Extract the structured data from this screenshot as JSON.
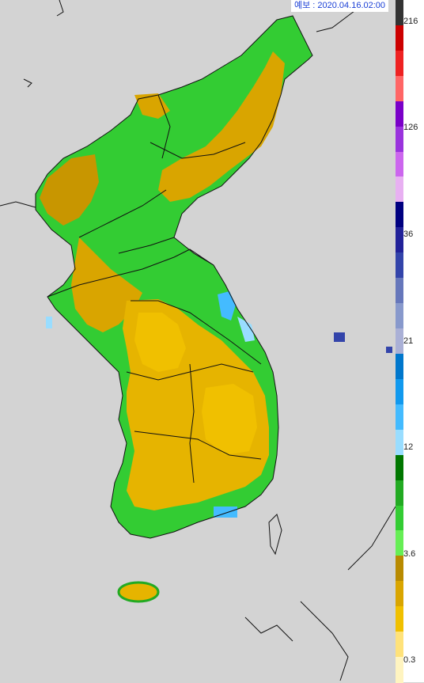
{
  "forecast_label": "예보 : 2020.04.16.02:00",
  "legend": {
    "ticks": [
      "216",
      "126",
      "36",
      "21",
      "12",
      "3.6",
      "0.3"
    ],
    "colors": [
      "#333333",
      "#cc0000",
      "#ee2222",
      "#ff6666",
      "#7a00c8",
      "#9a33dd",
      "#cc66ee",
      "#e8b0f2",
      "#000080",
      "#222299",
      "#3344aa",
      "#6677bb",
      "#8899cc",
      "#aab0d6",
      "#0077cc",
      "#1199ee",
      "#44bbff",
      "#99ddff",
      "#007700",
      "#22aa22",
      "#33cc33",
      "#66ee55",
      "#b88a00",
      "#d9a500",
      "#f0c000",
      "#ffe27a",
      "#fff4c0"
    ]
  },
  "map": {
    "land_colors": {
      "sea": "#d3d3d3",
      "low": "#e6b400",
      "mid": "#c89600",
      "green": "#33cc33",
      "dark_green": "#22aa22",
      "blue": "#44bbff",
      "navy": "#3344aa"
    }
  }
}
